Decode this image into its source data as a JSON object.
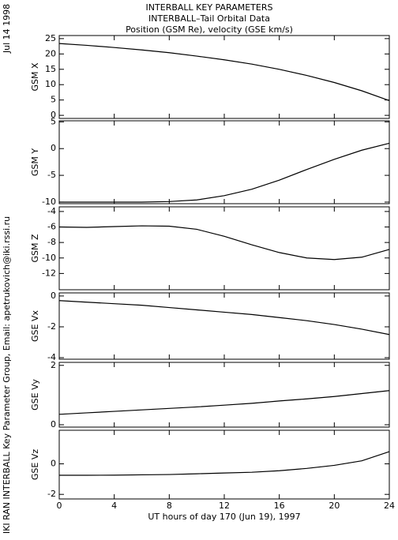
{
  "header": {
    "title": "INTERBALL KEY PARAMETERS",
    "subtitle": "INTERBALL–Tail Orbital Data",
    "subtitle2": "Position (GSM Re), velocity (GSE km/s)",
    "date": "Jul 14 1998",
    "credit": "IKI RAN INTERBALL Key Parameter Group, Email: apetrukovich@iki.rssi.ru"
  },
  "chart_data": [
    {
      "type": "line",
      "ylabel": "GSM X",
      "x": [
        0,
        2,
        4,
        6,
        8,
        10,
        12,
        14,
        16,
        18,
        20,
        22,
        24
      ],
      "values": [
        23.4,
        22.8,
        22.1,
        21.3,
        20.4,
        19.3,
        18.1,
        16.7,
        15,
        13,
        10.7,
        8,
        4.8
      ],
      "xlim": [
        0,
        24
      ],
      "xticks": [
        0,
        4,
        8,
        12,
        16,
        20,
        24
      ],
      "ylim": [
        -1,
        26
      ],
      "yticks": [
        0,
        5,
        10,
        15,
        20,
        25
      ],
      "color": "#000000"
    },
    {
      "type": "line",
      "ylabel": "GSM Y",
      "x": [
        0,
        2,
        4,
        6,
        8,
        10,
        12,
        14,
        16,
        18,
        20,
        22,
        24
      ],
      "values": [
        -10,
        -10,
        -10,
        -10,
        -9.9,
        -9.6,
        -8.8,
        -7.6,
        -5.9,
        -3.9,
        -2,
        -0.3,
        1
      ],
      "xlim": [
        0,
        24
      ],
      "xticks": [
        0,
        4,
        8,
        12,
        16,
        20,
        24
      ],
      "ylim": [
        -10.3,
        5.2
      ],
      "yticks": [
        -10,
        -5,
        0,
        5
      ],
      "color": "#000000"
    },
    {
      "type": "line",
      "ylabel": "GSM Z",
      "x": [
        0,
        2,
        4,
        6,
        8,
        10,
        12,
        14,
        16,
        18,
        20,
        22,
        24
      ],
      "values": [
        -6,
        -6.05,
        -5.95,
        -5.85,
        -5.9,
        -6.3,
        -7.2,
        -8.3,
        -9.3,
        -10,
        -10.2,
        -9.9,
        -8.9
      ],
      "xlim": [
        0,
        24
      ],
      "xticks": [
        0,
        4,
        8,
        12,
        16,
        20,
        24
      ],
      "ylim": [
        -14.1,
        -3.4
      ],
      "yticks": [
        -12,
        -10,
        -8,
        -6,
        -4
      ],
      "color": "#000000"
    },
    {
      "type": "line",
      "ylabel": "GSE Vx",
      "x": [
        0,
        2,
        4,
        6,
        8,
        10,
        12,
        14,
        16,
        18,
        20,
        22,
        24
      ],
      "values": [
        -0.3,
        -0.4,
        -0.5,
        -0.6,
        -0.75,
        -0.9,
        -1.05,
        -1.2,
        -1.4,
        -1.6,
        -1.85,
        -2.15,
        -2.5
      ],
      "xlim": [
        0,
        24
      ],
      "xticks": [
        0,
        4,
        8,
        12,
        16,
        20,
        24
      ],
      "ylim": [
        -4.1,
        0.2
      ],
      "yticks": [
        -4,
        -2,
        0
      ],
      "color": "#000000"
    },
    {
      "type": "line",
      "ylabel": "GSE Vy",
      "x": [
        0,
        2,
        4,
        6,
        8,
        10,
        12,
        14,
        16,
        18,
        20,
        22,
        24
      ],
      "values": [
        0.35,
        0.4,
        0.45,
        0.5,
        0.55,
        0.6,
        0.66,
        0.72,
        0.8,
        0.87,
        0.95,
        1.05,
        1.15
      ],
      "xlim": [
        0,
        24
      ],
      "xticks": [
        0,
        4,
        8,
        12,
        16,
        20,
        24
      ],
      "ylim": [
        -0.08,
        2.1
      ],
      "yticks": [
        0,
        2
      ],
      "color": "#000000"
    },
    {
      "type": "line",
      "ylabel": "GSE Vz",
      "xlabel": "UT hours of day 170 (Jun 19), 1997",
      "x": [
        0,
        2,
        4,
        6,
        8,
        10,
        12,
        14,
        16,
        18,
        20,
        22,
        24
      ],
      "values": [
        -0.75,
        -0.75,
        -0.74,
        -0.72,
        -0.7,
        -0.65,
        -0.6,
        -0.55,
        -0.45,
        -0.3,
        -0.1,
        0.2,
        0.8
      ],
      "xlim": [
        0,
        24
      ],
      "xticks": [
        0,
        4,
        8,
        12,
        16,
        20,
        24
      ],
      "ylim": [
        -2.3,
        2.2
      ],
      "yticks": [
        -2,
        0
      ],
      "color": "#000000"
    }
  ]
}
